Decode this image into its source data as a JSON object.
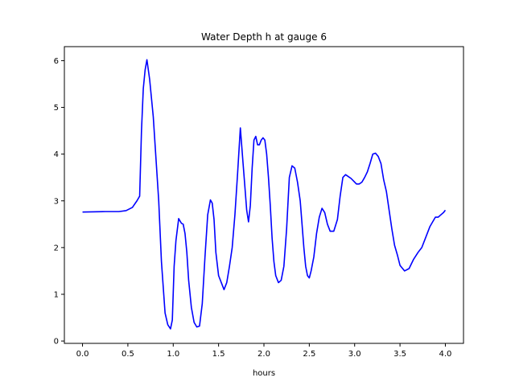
{
  "chart_data": {
    "type": "line",
    "title": "Water Depth h at gauge 6",
    "xlabel": "hours",
    "ylabel": "",
    "xlim": [
      -0.2,
      4.2
    ],
    "ylim": [
      -0.05,
      6.3
    ],
    "xticks": [
      0.0,
      0.5,
      1.0,
      1.5,
      2.0,
      2.5,
      3.0,
      3.5,
      4.0
    ],
    "xtick_labels": [
      "0.0",
      "0.5",
      "1.0",
      "1.5",
      "2.0",
      "2.5",
      "3.0",
      "3.5",
      "4.0"
    ],
    "yticks": [
      0,
      1,
      2,
      3,
      4,
      5,
      6
    ],
    "ytick_labels": [
      "0",
      "1",
      "2",
      "3",
      "4",
      "5",
      "6"
    ],
    "grid": false,
    "series": [
      {
        "color": "#0000ff",
        "x": [
          0.0,
          0.25,
          0.4,
          0.48,
          0.55,
          0.6,
          0.63,
          0.65,
          0.67,
          0.69,
          0.71,
          0.74,
          0.78,
          0.81,
          0.84,
          0.87,
          0.91,
          0.94,
          0.97,
          0.99,
          1.01,
          1.03,
          1.06,
          1.09,
          1.11,
          1.13,
          1.15,
          1.17,
          1.2,
          1.23,
          1.26,
          1.29,
          1.32,
          1.35,
          1.38,
          1.41,
          1.43,
          1.45,
          1.47,
          1.5,
          1.53,
          1.56,
          1.59,
          1.62,
          1.65,
          1.68,
          1.71,
          1.74,
          1.77,
          1.79,
          1.81,
          1.83,
          1.85,
          1.87,
          1.89,
          1.91,
          1.93,
          1.95,
          1.97,
          1.99,
          2.01,
          2.03,
          2.05,
          2.07,
          2.09,
          2.11,
          2.13,
          2.16,
          2.19,
          2.22,
          2.25,
          2.28,
          2.31,
          2.34,
          2.37,
          2.4,
          2.42,
          2.44,
          2.46,
          2.48,
          2.5,
          2.52,
          2.55,
          2.58,
          2.61,
          2.64,
          2.67,
          2.7,
          2.73,
          2.77,
          2.81,
          2.84,
          2.87,
          2.9,
          2.93,
          2.96,
          2.99,
          3.02,
          3.05,
          3.08,
          3.11,
          3.14,
          3.17,
          3.2,
          3.23,
          3.26,
          3.29,
          3.32,
          3.35,
          3.38,
          3.41,
          3.44,
          3.47,
          3.5,
          3.55,
          3.6,
          3.65,
          3.7,
          3.74,
          3.77,
          3.8,
          3.83,
          3.86,
          3.89,
          3.92,
          3.95,
          3.98,
          4.0
        ],
        "y": [
          2.76,
          2.77,
          2.77,
          2.79,
          2.86,
          3.0,
          3.1,
          4.5,
          5.4,
          5.8,
          6.02,
          5.6,
          4.8,
          3.9,
          3.0,
          1.7,
          0.6,
          0.35,
          0.26,
          0.45,
          1.6,
          2.15,
          2.62,
          2.52,
          2.5,
          2.3,
          1.9,
          1.3,
          0.72,
          0.4,
          0.3,
          0.32,
          0.8,
          1.8,
          2.7,
          3.02,
          2.95,
          2.6,
          1.9,
          1.4,
          1.25,
          1.1,
          1.25,
          1.6,
          2.0,
          2.7,
          3.6,
          4.56,
          3.8,
          3.3,
          2.8,
          2.55,
          2.9,
          3.7,
          4.3,
          4.38,
          4.2,
          4.2,
          4.3,
          4.35,
          4.3,
          4.0,
          3.5,
          2.9,
          2.2,
          1.7,
          1.4,
          1.25,
          1.3,
          1.6,
          2.4,
          3.5,
          3.75,
          3.7,
          3.4,
          3.0,
          2.5,
          2.0,
          1.6,
          1.4,
          1.35,
          1.5,
          1.8,
          2.3,
          2.65,
          2.84,
          2.75,
          2.5,
          2.35,
          2.35,
          2.6,
          3.1,
          3.5,
          3.56,
          3.52,
          3.48,
          3.42,
          3.36,
          3.36,
          3.4,
          3.5,
          3.62,
          3.8,
          4.0,
          4.02,
          3.95,
          3.8,
          3.45,
          3.2,
          2.8,
          2.4,
          2.05,
          1.85,
          1.62,
          1.5,
          1.55,
          1.75,
          1.9,
          2.0,
          2.15,
          2.3,
          2.45,
          2.55,
          2.65,
          2.65,
          2.7,
          2.75,
          2.8
        ]
      }
    ]
  }
}
